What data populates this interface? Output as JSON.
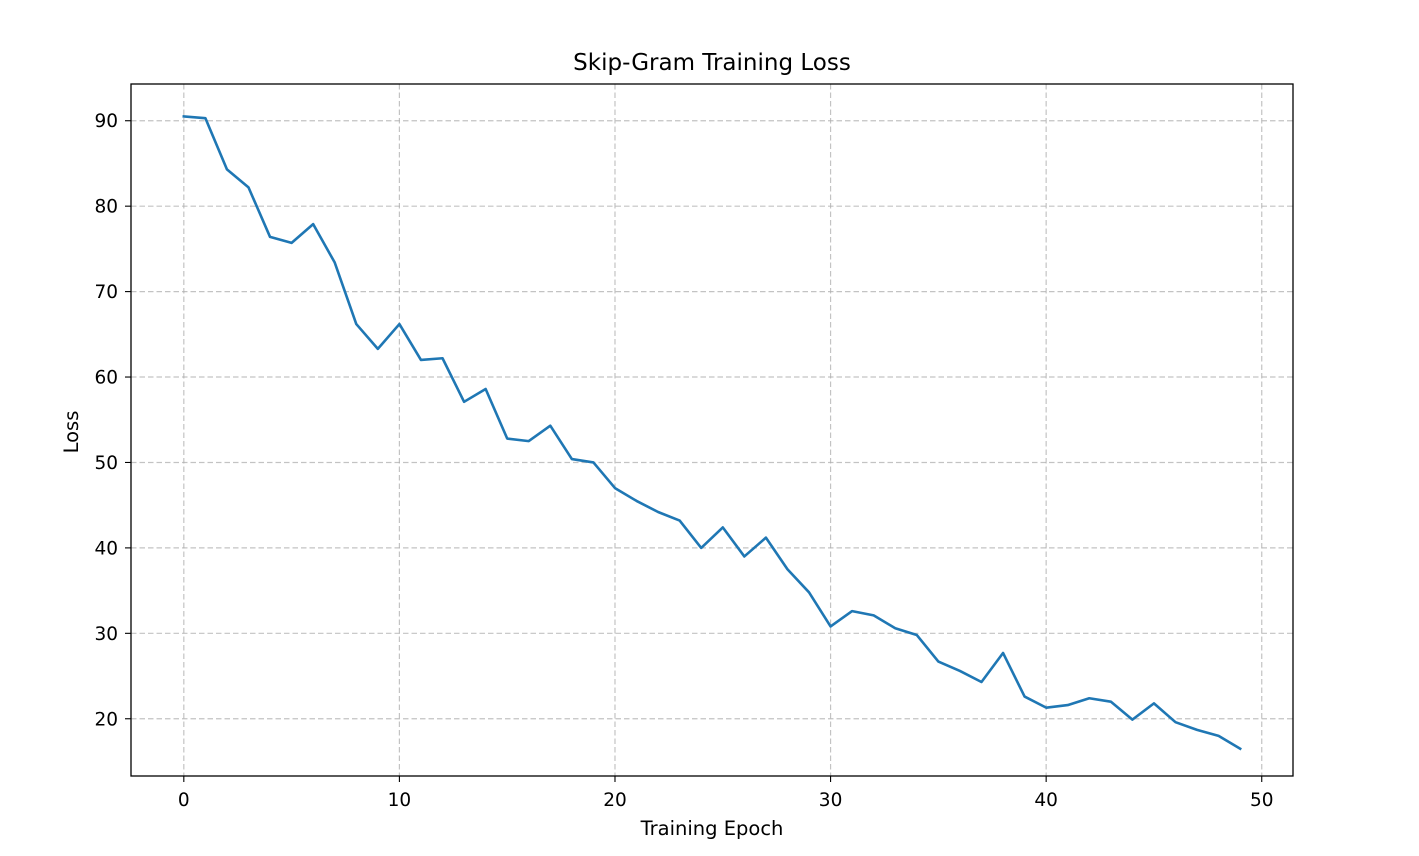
{
  "chart_data": {
    "type": "line",
    "title": "Skip-Gram Training Loss",
    "xlabel": "Training Epoch",
    "ylabel": "Loss",
    "xlim": [
      -2.45,
      51.45
    ],
    "ylim": [
      13.3,
      94.3
    ],
    "xticks": [
      0,
      10,
      20,
      30,
      40,
      50
    ],
    "xtick_labels": [
      "0",
      "10",
      "20",
      "30",
      "40",
      "50"
    ],
    "yticks": [
      20,
      30,
      40,
      50,
      60,
      70,
      80,
      90
    ],
    "ytick_labels": [
      "20",
      "30",
      "40",
      "50",
      "60",
      "70",
      "80",
      "90"
    ],
    "grid": true,
    "legend": "none",
    "line_color": "#1f77b4",
    "series": [
      {
        "x": [
          0,
          1,
          2,
          3,
          4,
          5,
          6,
          7,
          8,
          9,
          10,
          11,
          12,
          13,
          14,
          15,
          16,
          17,
          18,
          19,
          20,
          21,
          22,
          23,
          24,
          25,
          26,
          27,
          28,
          29,
          30,
          31,
          32,
          33,
          34,
          35,
          36,
          37,
          38,
          39,
          40,
          41,
          42,
          43,
          44,
          45,
          46,
          47,
          48,
          49
        ],
        "values": [
          90.5,
          90.3,
          84.3,
          82.2,
          76.4,
          75.7,
          77.9,
          73.4,
          66.2,
          63.3,
          66.2,
          62.0,
          62.2,
          57.1,
          58.6,
          52.8,
          52.5,
          54.3,
          50.4,
          50.0,
          47.0,
          45.5,
          44.2,
          43.2,
          40.0,
          42.4,
          39.0,
          41.2,
          37.5,
          34.8,
          30.8,
          32.6,
          32.1,
          30.6,
          29.8,
          26.7,
          25.6,
          24.3,
          27.7,
          22.6,
          21.3,
          21.6,
          22.4,
          22.0,
          19.9,
          21.8,
          19.6,
          18.7,
          18.0,
          16.5
        ]
      }
    ]
  }
}
